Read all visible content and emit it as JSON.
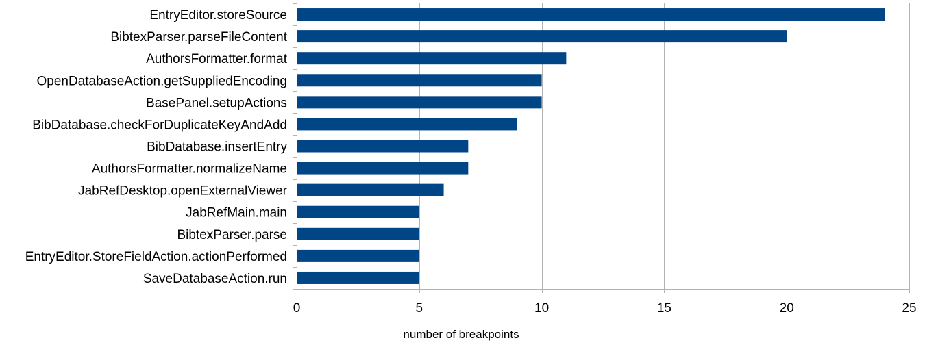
{
  "chart_data": {
    "type": "bar",
    "orientation": "horizontal",
    "categories": [
      "EntryEditor.storeSource",
      "BibtexParser.parseFileContent",
      "AuthorsFormatter.format",
      "OpenDatabaseAction.getSuppliedEncoding",
      "BasePanel.setupActions",
      "BibDatabase.checkForDuplicateKeyAndAdd",
      "BibDatabase.insertEntry",
      "AuthorsFormatter.normalizeName",
      "JabRefDesktop.openExternalViewer",
      "JabRefMain.main",
      "BibtexParser.parse",
      "EntryEditor.StoreFieldAction.actionPerformed",
      "SaveDatabaseAction.run"
    ],
    "values": [
      24,
      20,
      11,
      10,
      10,
      9,
      7,
      7,
      6,
      5,
      5,
      5,
      5
    ],
    "xlabel": "number of breakpoints",
    "ylabel": "",
    "xlim": [
      0,
      25
    ],
    "xticks": [
      0,
      5,
      10,
      15,
      20,
      25
    ],
    "grid": true,
    "legend": "none",
    "colors": {
      "bar": "#004586",
      "grid": "#b3b3b3",
      "axis": "#b3b3b3",
      "text": "#000000"
    }
  }
}
